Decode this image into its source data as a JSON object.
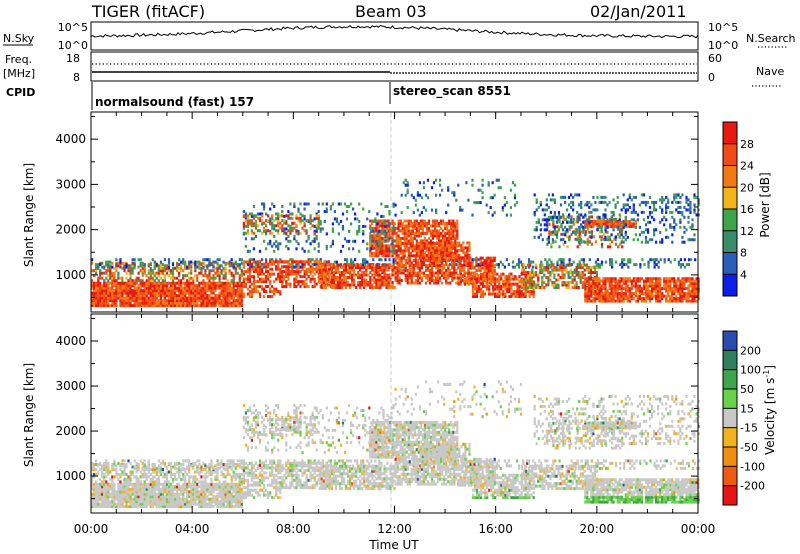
{
  "header": {
    "radar": "TIGER (fitACF)",
    "beam": "Beam 03",
    "date": "02/Jan/2011"
  },
  "status": {
    "nsky_label": "N.Sky",
    "nsky_ticks": [
      "10^5",
      "10^0"
    ],
    "nsearch_label": "N.Search",
    "nsearch_ticks": [
      "10^5",
      "10^0"
    ],
    "freq_label": [
      "Freq.",
      "[MHz]"
    ],
    "freq_ticks": [
      "18",
      "8"
    ],
    "nave_label": "Nave",
    "nave_ticks": [
      "60",
      "0"
    ],
    "cpid_label": "CPID",
    "cpid_segments": [
      {
        "text": "normalsound (fast) 157",
        "start_hour": 0
      },
      {
        "text": "stereo_scan 8551",
        "start_hour": 12
      }
    ]
  },
  "colors": {
    "power_scale": [
      "#0b1fe8",
      "#2a5fb8",
      "#3a8d6a",
      "#3fa54a",
      "#f4b41c",
      "#f27a15",
      "#f04a17",
      "#e61a10"
    ],
    "velocity_scale": [
      "#e61414",
      "#ee5a10",
      "#f08e12",
      "#f3b320",
      "#c8c8c8",
      "#6ad14a",
      "#3fa44a",
      "#2f7e5e",
      "#2a4bb0"
    ]
  },
  "chart_data": [
    {
      "type": "heatmap",
      "title": "",
      "xlabel": "",
      "ylabel": "Slant Range [km]",
      "x_ticks": [
        "00:00",
        "04:00",
        "08:00",
        "12:00",
        "16:00",
        "20:00",
        "00:00"
      ],
      "x_range_hours": [
        0,
        24
      ],
      "y_ticks": [
        "1000",
        "2000",
        "3000",
        "4000"
      ],
      "ylim": [
        180,
        4600
      ],
      "colorbar_label": "Power [dB]",
      "colorbar_ticks": [
        "4",
        "8",
        "12",
        "16",
        "20",
        "24",
        "28"
      ],
      "colorbar_range": [
        0,
        30
      ],
      "dashed_marker_hour": 12
    },
    {
      "type": "heatmap",
      "title": "",
      "xlabel": "Time UT",
      "ylabel": "Slant Range [km]",
      "x_ticks": [
        "00:00",
        "04:00",
        "08:00",
        "12:00",
        "16:00",
        "20:00",
        "00:00"
      ],
      "x_range_hours": [
        0,
        24
      ],
      "y_ticks": [
        "1000",
        "2000",
        "3000",
        "4000"
      ],
      "ylim": [
        180,
        4600
      ],
      "colorbar_label": "Velocity [m s^-1]",
      "colorbar_label_parts": [
        "Velocity [m s",
        "-1",
        "]"
      ],
      "colorbar_ticks": [
        "-200",
        "-100",
        "-50",
        "-15",
        "15",
        "50",
        "100",
        "200"
      ],
      "colorbar_range": [
        -250,
        250
      ],
      "dashed_marker_hour": 12
    }
  ]
}
